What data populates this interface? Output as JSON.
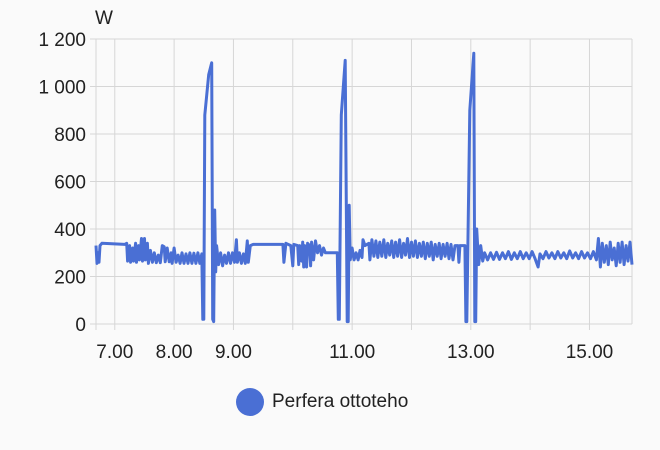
{
  "chart_data": {
    "type": "line",
    "ylabel": "W",
    "ylim": [
      0,
      1200
    ],
    "yticks": [
      0,
      200,
      400,
      600,
      800,
      1000,
      1200
    ],
    "ytick_labels": [
      "0",
      "200",
      "400",
      "600",
      "800",
      "1 000",
      "1 200"
    ],
    "xlim": [
      "6:41",
      "15:43"
    ],
    "xgrid_hours": [
      7,
      8,
      9,
      10,
      11,
      12,
      13,
      14,
      15
    ],
    "xtick_labels": [
      {
        "hour": 7,
        "label": "7.00"
      },
      {
        "hour": 8,
        "label": "8.00"
      },
      {
        "hour": 9,
        "label": "9.00"
      },
      {
        "hour": 11,
        "label": "11.00"
      },
      {
        "hour": 13,
        "label": "13.00"
      },
      {
        "hour": 15,
        "label": "15.00"
      }
    ],
    "grid": true,
    "legend": "bottom",
    "series": [
      {
        "name": "Perfera ottoteho",
        "color": "#4a6fd4",
        "points": [
          [
            "6:41",
            330
          ],
          [
            "6:42",
            255
          ],
          [
            "6:43",
            300
          ],
          [
            "6:44",
            260
          ],
          [
            "6:45",
            330
          ],
          [
            "6:47",
            340
          ],
          [
            "7:10",
            335
          ],
          [
            "7:12",
            340
          ],
          [
            "7:13",
            265
          ],
          [
            "7:15",
            330
          ],
          [
            "7:16",
            260
          ],
          [
            "7:18",
            320
          ],
          [
            "7:19",
            265
          ],
          [
            "7:21",
            340
          ],
          [
            "7:22",
            260
          ],
          [
            "7:24",
            330
          ],
          [
            "7:25",
            270
          ],
          [
            "7:27",
            360
          ],
          [
            "7:28",
            265
          ],
          [
            "7:30",
            360
          ],
          [
            "7:31",
            270
          ],
          [
            "7:33",
            340
          ],
          [
            "7:34",
            255
          ],
          [
            "7:36",
            310
          ],
          [
            "7:38",
            260
          ],
          [
            "7:40",
            300
          ],
          [
            "7:42",
            258
          ],
          [
            "7:44",
            290
          ],
          [
            "7:46",
            258
          ],
          [
            "7:48",
            330
          ],
          [
            "7:50",
            325
          ],
          [
            "7:51",
            262
          ],
          [
            "7:53",
            320
          ],
          [
            "7:55",
            262
          ],
          [
            "7:57",
            300
          ],
          [
            "7:58",
            255
          ],
          [
            "8:00",
            320
          ],
          [
            "8:02",
            260
          ],
          [
            "8:04",
            290
          ],
          [
            "8:06",
            255
          ],
          [
            "8:08",
            300
          ],
          [
            "8:10",
            255
          ],
          [
            "8:12",
            295
          ],
          [
            "8:14",
            255
          ],
          [
            "8:16",
            300
          ],
          [
            "8:18",
            255
          ],
          [
            "8:20",
            298
          ],
          [
            "8:22",
            255
          ],
          [
            "8:24",
            300
          ],
          [
            "8:26",
            255
          ],
          [
            "8:28",
            295
          ],
          [
            "8:29",
            20
          ],
          [
            "8:30",
            20
          ],
          [
            "8:31",
            880
          ],
          [
            "8:35",
            1050
          ],
          [
            "8:38",
            1100
          ],
          [
            "8:39",
            20
          ],
          [
            "8:40",
            10
          ],
          [
            "8:41",
            480
          ],
          [
            "8:42",
            220
          ],
          [
            "8:43",
            330
          ],
          [
            "8:45",
            250
          ],
          [
            "8:47",
            300
          ],
          [
            "8:49",
            245
          ],
          [
            "8:51",
            290
          ],
          [
            "8:53",
            255
          ],
          [
            "8:55",
            300
          ],
          [
            "8:57",
            255
          ],
          [
            "8:59",
            300
          ],
          [
            "9:01",
            260
          ],
          [
            "9:03",
            355
          ],
          [
            "9:04",
            260
          ],
          [
            "9:06",
            300
          ],
          [
            "9:08",
            255
          ],
          [
            "9:10",
            295
          ],
          [
            "9:12",
            255
          ],
          [
            "9:14",
            350
          ],
          [
            "9:15",
            260
          ],
          [
            "9:17",
            330
          ],
          [
            "9:20",
            335
          ],
          [
            "9:50",
            335
          ],
          [
            "9:51",
            260
          ],
          [
            "9:53",
            340
          ],
          [
            "9:58",
            330
          ],
          [
            "10:00",
            245
          ],
          [
            "10:01",
            335
          ],
          [
            "10:05",
            330
          ],
          [
            "10:06",
            250
          ],
          [
            "10:07",
            330
          ],
          [
            "10:09",
            265
          ],
          [
            "10:10",
            345
          ],
          [
            "10:11",
            240
          ],
          [
            "10:12",
            330
          ],
          [
            "10:14",
            240
          ],
          [
            "10:15",
            340
          ],
          [
            "10:17",
            330
          ],
          [
            "10:18",
            245
          ],
          [
            "10:19",
            345
          ],
          [
            "10:21",
            270
          ],
          [
            "10:23",
            350
          ],
          [
            "10:25",
            300
          ],
          [
            "10:27",
            330
          ],
          [
            "10:29",
            290
          ],
          [
            "10:31",
            320
          ],
          [
            "10:33",
            300
          ],
          [
            "10:45",
            300
          ],
          [
            "10:46",
            20
          ],
          [
            "10:47",
            20
          ],
          [
            "10:49",
            880
          ],
          [
            "10:53",
            1110
          ],
          [
            "10:55",
            10
          ],
          [
            "10:56",
            10
          ],
          [
            "10:57",
            500
          ],
          [
            "10:58",
            270
          ],
          [
            "11:00",
            320
          ],
          [
            "11:02",
            270
          ],
          [
            "11:04",
            300
          ],
          [
            "11:06",
            270
          ],
          [
            "11:08",
            310
          ],
          [
            "11:10",
            280
          ],
          [
            "11:11",
            355
          ],
          [
            "11:13",
            330
          ],
          [
            "11:17",
            340
          ],
          [
            "11:18",
            270
          ],
          [
            "11:20",
            355
          ],
          [
            "11:22",
            285
          ],
          [
            "11:24",
            350
          ],
          [
            "11:26",
            280
          ],
          [
            "11:28",
            345
          ],
          [
            "11:30",
            285
          ],
          [
            "11:32",
            355
          ],
          [
            "11:34",
            280
          ],
          [
            "11:36",
            340
          ],
          [
            "11:38",
            290
          ],
          [
            "11:40",
            350
          ],
          [
            "11:42",
            280
          ],
          [
            "11:44",
            345
          ],
          [
            "11:46",
            285
          ],
          [
            "11:48",
            355
          ],
          [
            "11:50",
            280
          ],
          [
            "11:52",
            340
          ],
          [
            "11:54",
            290
          ],
          [
            "11:56",
            360
          ],
          [
            "11:58",
            280
          ],
          [
            "12:00",
            345
          ],
          [
            "12:02",
            285
          ],
          [
            "12:04",
            350
          ],
          [
            "12:06",
            280
          ],
          [
            "12:08",
            340
          ],
          [
            "12:10",
            285
          ],
          [
            "12:12",
            345
          ],
          [
            "12:14",
            275
          ],
          [
            "12:16",
            340
          ],
          [
            "12:18",
            285
          ],
          [
            "12:20",
            345
          ],
          [
            "12:22",
            270
          ],
          [
            "12:24",
            335
          ],
          [
            "12:26",
            285
          ],
          [
            "12:28",
            340
          ],
          [
            "12:30",
            275
          ],
          [
            "12:32",
            335
          ],
          [
            "12:34",
            285
          ],
          [
            "12:36",
            340
          ],
          [
            "12:38",
            275
          ],
          [
            "12:40",
            335
          ],
          [
            "12:42",
            270
          ],
          [
            "12:44",
            330
          ],
          [
            "12:47",
            330
          ],
          [
            "12:48",
            260
          ],
          [
            "12:49",
            330
          ],
          [
            "12:54",
            330
          ],
          [
            "12:55",
            10
          ],
          [
            "12:56",
            10
          ],
          [
            "12:59",
            900
          ],
          [
            "13:03",
            1140
          ],
          [
            "13:04",
            10
          ],
          [
            "13:05",
            10
          ],
          [
            "13:06",
            400
          ],
          [
            "13:08",
            250
          ],
          [
            "13:10",
            330
          ],
          [
            "13:12",
            265
          ],
          [
            "13:14",
            300
          ],
          [
            "13:17",
            270
          ],
          [
            "13:20",
            300
          ],
          [
            "13:23",
            272
          ],
          [
            "13:26",
            302
          ],
          [
            "13:29",
            272
          ],
          [
            "13:32",
            300
          ],
          [
            "13:35",
            275
          ],
          [
            "13:38",
            305
          ],
          [
            "13:41",
            272
          ],
          [
            "13:44",
            300
          ],
          [
            "13:47",
            275
          ],
          [
            "13:50",
            305
          ],
          [
            "13:53",
            275
          ],
          [
            "13:56",
            300
          ],
          [
            "13:59",
            275
          ],
          [
            "14:02",
            305
          ],
          [
            "14:05",
            275
          ],
          [
            "14:08",
            240
          ],
          [
            "14:10",
            295
          ],
          [
            "14:13",
            275
          ],
          [
            "14:16",
            305
          ],
          [
            "14:19",
            278
          ],
          [
            "14:22",
            300
          ],
          [
            "14:25",
            275
          ],
          [
            "14:28",
            305
          ],
          [
            "14:31",
            278
          ],
          [
            "14:34",
            300
          ],
          [
            "14:37",
            275
          ],
          [
            "14:40",
            308
          ],
          [
            "14:43",
            278
          ],
          [
            "14:46",
            300
          ],
          [
            "14:49",
            275
          ],
          [
            "14:52",
            305
          ],
          [
            "14:55",
            278
          ],
          [
            "14:58",
            300
          ],
          [
            "15:01",
            275
          ],
          [
            "15:04",
            305
          ],
          [
            "15:07",
            270
          ],
          [
            "15:09",
            360
          ],
          [
            "15:11",
            240
          ],
          [
            "15:13",
            340
          ],
          [
            "15:15",
            260
          ],
          [
            "15:17",
            330
          ],
          [
            "15:19",
            250
          ],
          [
            "15:21",
            345
          ],
          [
            "15:23",
            270
          ],
          [
            "15:25",
            320
          ],
          [
            "15:27",
            245
          ],
          [
            "15:29",
            340
          ],
          [
            "15:31",
            260
          ],
          [
            "15:33",
            345
          ],
          [
            "15:35",
            250
          ],
          [
            "15:37",
            330
          ],
          [
            "15:39",
            265
          ],
          [
            "15:41",
            345
          ],
          [
            "15:43",
            250
          ]
        ]
      }
    ]
  }
}
